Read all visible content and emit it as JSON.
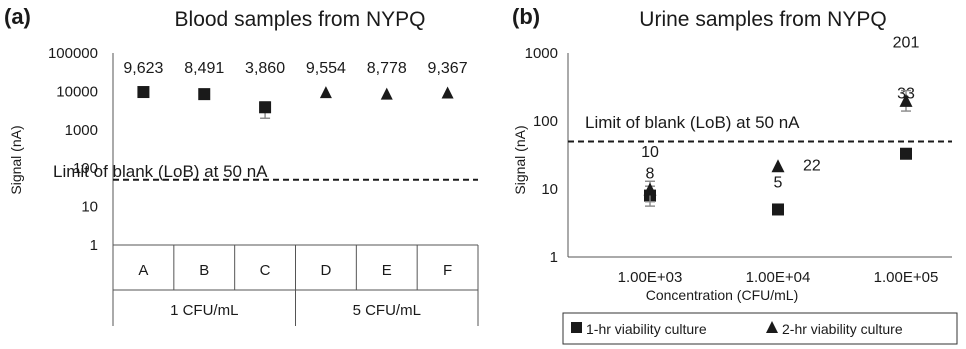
{
  "chart_data": [
    {
      "panel": "(a)",
      "type": "scatter",
      "title": "Blood samples from NYPQ",
      "ylabel": "Signal (nA)",
      "y_scale": "log",
      "ylim": [
        1,
        100000
      ],
      "y_ticks": [
        "1",
        "10",
        "100",
        "1000",
        "10000",
        "100000"
      ],
      "categories": [
        "A",
        "B",
        "C",
        "D",
        "E",
        "F"
      ],
      "groups": [
        {
          "label": "1 CFU/mL",
          "categories": [
            "A",
            "B",
            "C"
          ]
        },
        {
          "label": "5 CFU/mL",
          "categories": [
            "D",
            "E",
            "F"
          ]
        }
      ],
      "points": [
        {
          "category": "A",
          "value": 9623,
          "label": "9,623",
          "marker": "square",
          "err_low": 9623,
          "err_high": 9623
        },
        {
          "category": "B",
          "value": 8491,
          "label": "8,491",
          "marker": "square",
          "err_low": 8491,
          "err_high": 8491
        },
        {
          "category": "C",
          "value": 3860,
          "label": "3,860",
          "marker": "square",
          "err_low": 2000,
          "err_high": 5300
        },
        {
          "category": "D",
          "value": 9554,
          "label": "9,554",
          "marker": "triangle",
          "err_low": 9554,
          "err_high": 9554
        },
        {
          "category": "E",
          "value": 8778,
          "label": "8,778",
          "marker": "triangle",
          "err_low": 8778,
          "err_high": 8778
        },
        {
          "category": "F",
          "value": 9367,
          "label": "9,367",
          "marker": "triangle",
          "err_low": 9367,
          "err_high": 9367
        }
      ],
      "lob": {
        "value": 50,
        "label": "Limit of blank (LoB) at 50 nA"
      }
    },
    {
      "panel": "(b)",
      "type": "scatter",
      "title": "Urine samples from NYPQ",
      "ylabel": "Signal (nA)",
      "xlabel": "Concentration (CFU/mL)",
      "y_scale": "log",
      "ylim": [
        1,
        1000
      ],
      "y_ticks": [
        "1",
        "10",
        "100",
        "1000"
      ],
      "categories": [
        "1.00E+03",
        "1.00E+04",
        "1.00E+05"
      ],
      "series": [
        {
          "name": "1-hr viability culture",
          "marker": "square",
          "points": [
            {
              "category": "1.00E+03",
              "value": 8,
              "label": "8",
              "err_low": 5.6,
              "err_high": 11
            },
            {
              "category": "1.00E+04",
              "value": 5,
              "label": "5",
              "err_low": 4.6,
              "err_high": 5.9
            },
            {
              "category": "1.00E+05",
              "value": 33,
              "label": "33",
              "err_low": 33,
              "err_high": 33
            }
          ]
        },
        {
          "name": "2-hr viability culture",
          "marker": "triangle",
          "points": [
            {
              "category": "1.00E+03",
              "value": 10,
              "label": "10",
              "err_low": 6.5,
              "err_high": 13
            },
            {
              "category": "1.00E+04",
              "value": 22,
              "label": "22",
              "err_low": 22,
              "err_high": 22
            },
            {
              "category": "1.00E+05",
              "value": 201,
              "label": "201",
              "err_low": 140,
              "err_high": 280
            }
          ]
        }
      ],
      "lob": {
        "value": 50,
        "label": "Limit of blank (LoB) at 50 nA"
      },
      "legend": {
        "placement": "bottom"
      }
    }
  ]
}
